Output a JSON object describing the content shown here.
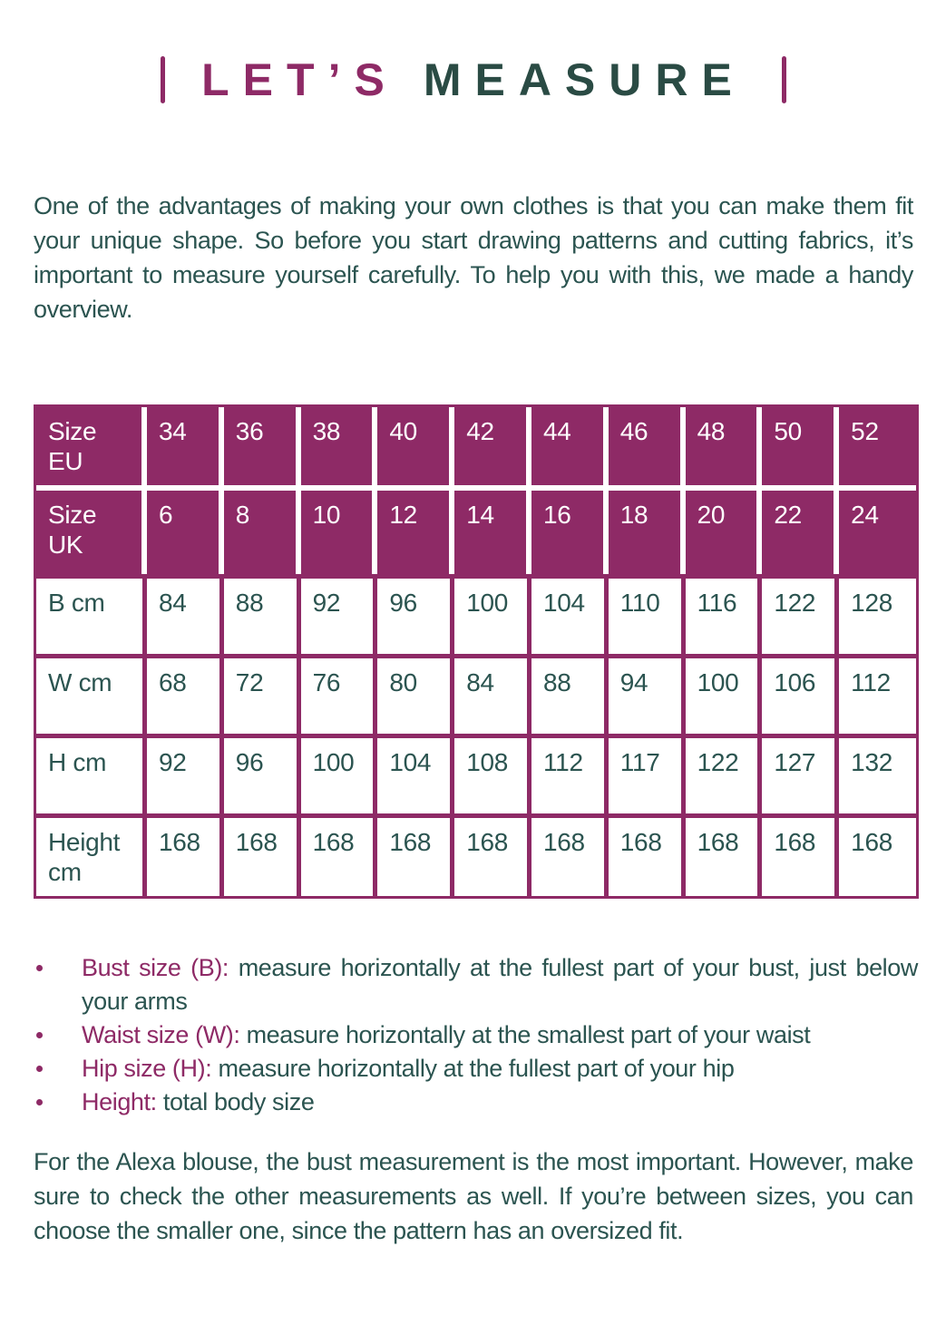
{
  "title": {
    "prefix": "LET’S",
    "main": "MEASURE"
  },
  "intro": "One of the advantages of making your own clothes is that you can make them fit your unique shape. So before you start drawing patterns and cutting fabrics, it’s important to measure yourself carefully. To help you with this, we made a handy overview.",
  "table": {
    "header_rows": [
      {
        "label": "Size\nEU",
        "values": [
          "34",
          "36",
          "38",
          "40",
          "42",
          "44",
          "46",
          "48",
          "50",
          "52"
        ]
      },
      {
        "label": "Size\nUK",
        "values": [
          "6",
          "8",
          "10",
          "12",
          "14",
          "16",
          "18",
          "20",
          "22",
          "24"
        ]
      }
    ],
    "body_rows": [
      {
        "label": "B cm",
        "values": [
          "84",
          "88",
          "92",
          "96",
          "100",
          "104",
          "110",
          "116",
          "122",
          "128"
        ]
      },
      {
        "label": "W cm",
        "values": [
          "68",
          "72",
          "76",
          "80",
          "84",
          "88",
          "94",
          "100",
          "106",
          "112"
        ]
      },
      {
        "label": "H cm",
        "values": [
          "92",
          "96",
          "100",
          "104",
          "108",
          "112",
          "117",
          "122",
          "127",
          "132"
        ]
      },
      {
        "label": "Height\ncm",
        "values": [
          "168",
          "168",
          "168",
          "168",
          "168",
          "168",
          "168",
          "168",
          "168",
          "168"
        ]
      }
    ]
  },
  "bullets": [
    {
      "label": "Bust size (B):",
      "text": "measure horizontally at the fullest part of your bust, just below your arms"
    },
    {
      "label": "Waist size (W):",
      "text": "measure horizontally at the smallest part of your waist"
    },
    {
      "label": "Hip size (H):",
      "text": "measure horizontally at the fullest part of your hip"
    },
    {
      "label": "Height:",
      "text": "total body size"
    }
  ],
  "outro": "For the Alexa blouse, the bust measurement is the most important. However, make sure to check the other measurements as well. If you’re between sizes, you can choose the smaller one, since the pattern has an oversized fit.",
  "colors": {
    "magenta": "#8E2A66",
    "teal_text": "#2B5450",
    "title_teal": "#2A4B44"
  }
}
